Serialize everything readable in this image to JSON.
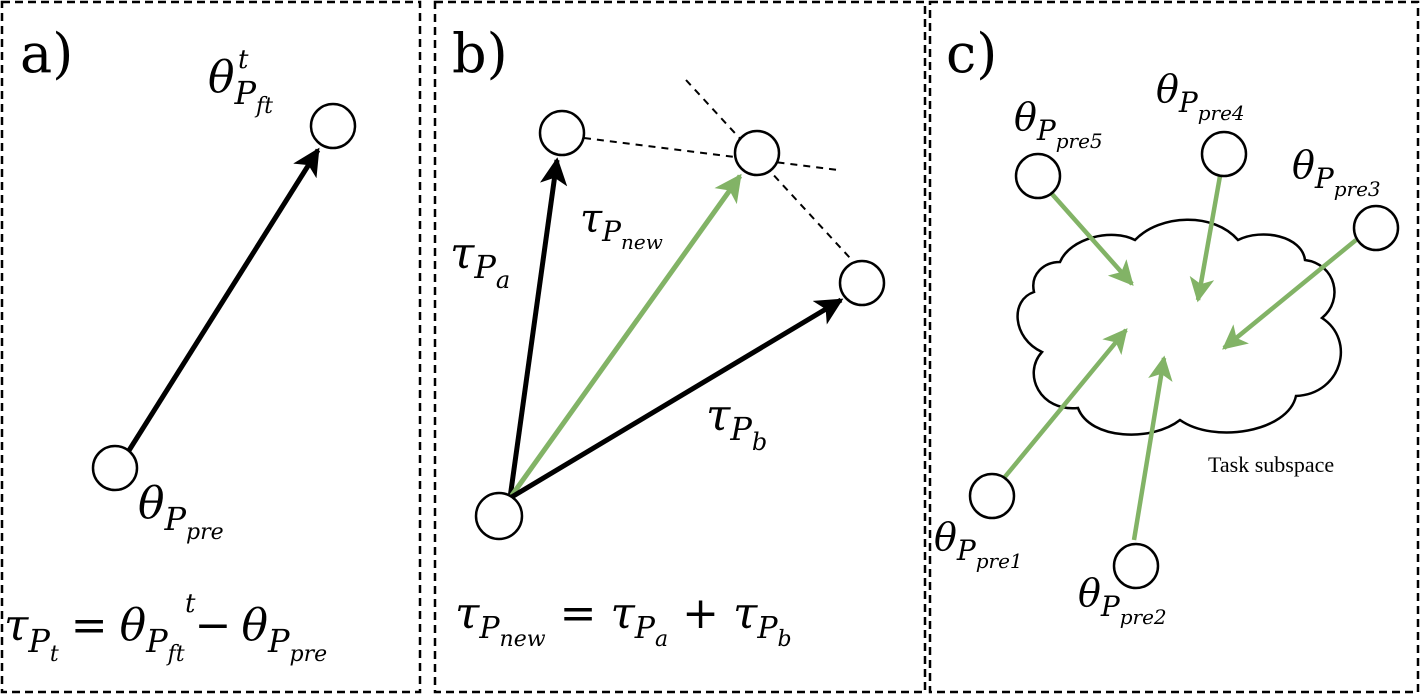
{
  "panels": [
    {
      "id": "a",
      "label": "a)",
      "vector_label": {
        "base": "θ",
        "sub": "P",
        "subsub": "ft",
        "sup": "t"
      },
      "origin_label": {
        "base": "θ",
        "sub": "P",
        "subsub": "pre"
      },
      "equation": {
        "lhs": {
          "base": "τ",
          "sub": "P",
          "subsub": "t"
        },
        "eq": "=",
        "term1": {
          "base": "θ",
          "sub": "P",
          "subsub": "ft",
          "sup": "t"
        },
        "minus": "−",
        "term2": {
          "base": "θ",
          "sub": "P",
          "subsub": "pre"
        }
      }
    },
    {
      "id": "b",
      "label": "b)",
      "vector_a": {
        "base": "τ",
        "sub": "P",
        "subsub": "a"
      },
      "vector_new": {
        "base": "τ",
        "sub": "P",
        "subsub": "new"
      },
      "vector_b": {
        "base": "τ",
        "sub": "P",
        "subsub": "b"
      },
      "equation": {
        "lhs": {
          "base": "τ",
          "sub": "P",
          "subsub": "new"
        },
        "eq": "=",
        "term1": {
          "base": "τ",
          "sub": "P",
          "subsub": "a"
        },
        "plus": "+",
        "term2": {
          "base": "τ",
          "sub": "P",
          "subsub": "b"
        }
      }
    },
    {
      "id": "c",
      "label": "c)",
      "points": [
        {
          "base": "θ",
          "sub": "P",
          "subsub": "pre5"
        },
        {
          "base": "θ",
          "sub": "P",
          "subsub": "pre4"
        },
        {
          "base": "θ",
          "sub": "P",
          "subsub": "pre3"
        },
        {
          "base": "θ",
          "sub": "P",
          "subsub": "pre1"
        },
        {
          "base": "θ",
          "sub": "P",
          "subsub": "pre2"
        }
      ],
      "region_label": "Task subspace"
    }
  ],
  "colors": {
    "black_arrow": "#000000",
    "green_arrow": "#82b366",
    "border": "#000000",
    "node_fill": "#ffffff"
  }
}
